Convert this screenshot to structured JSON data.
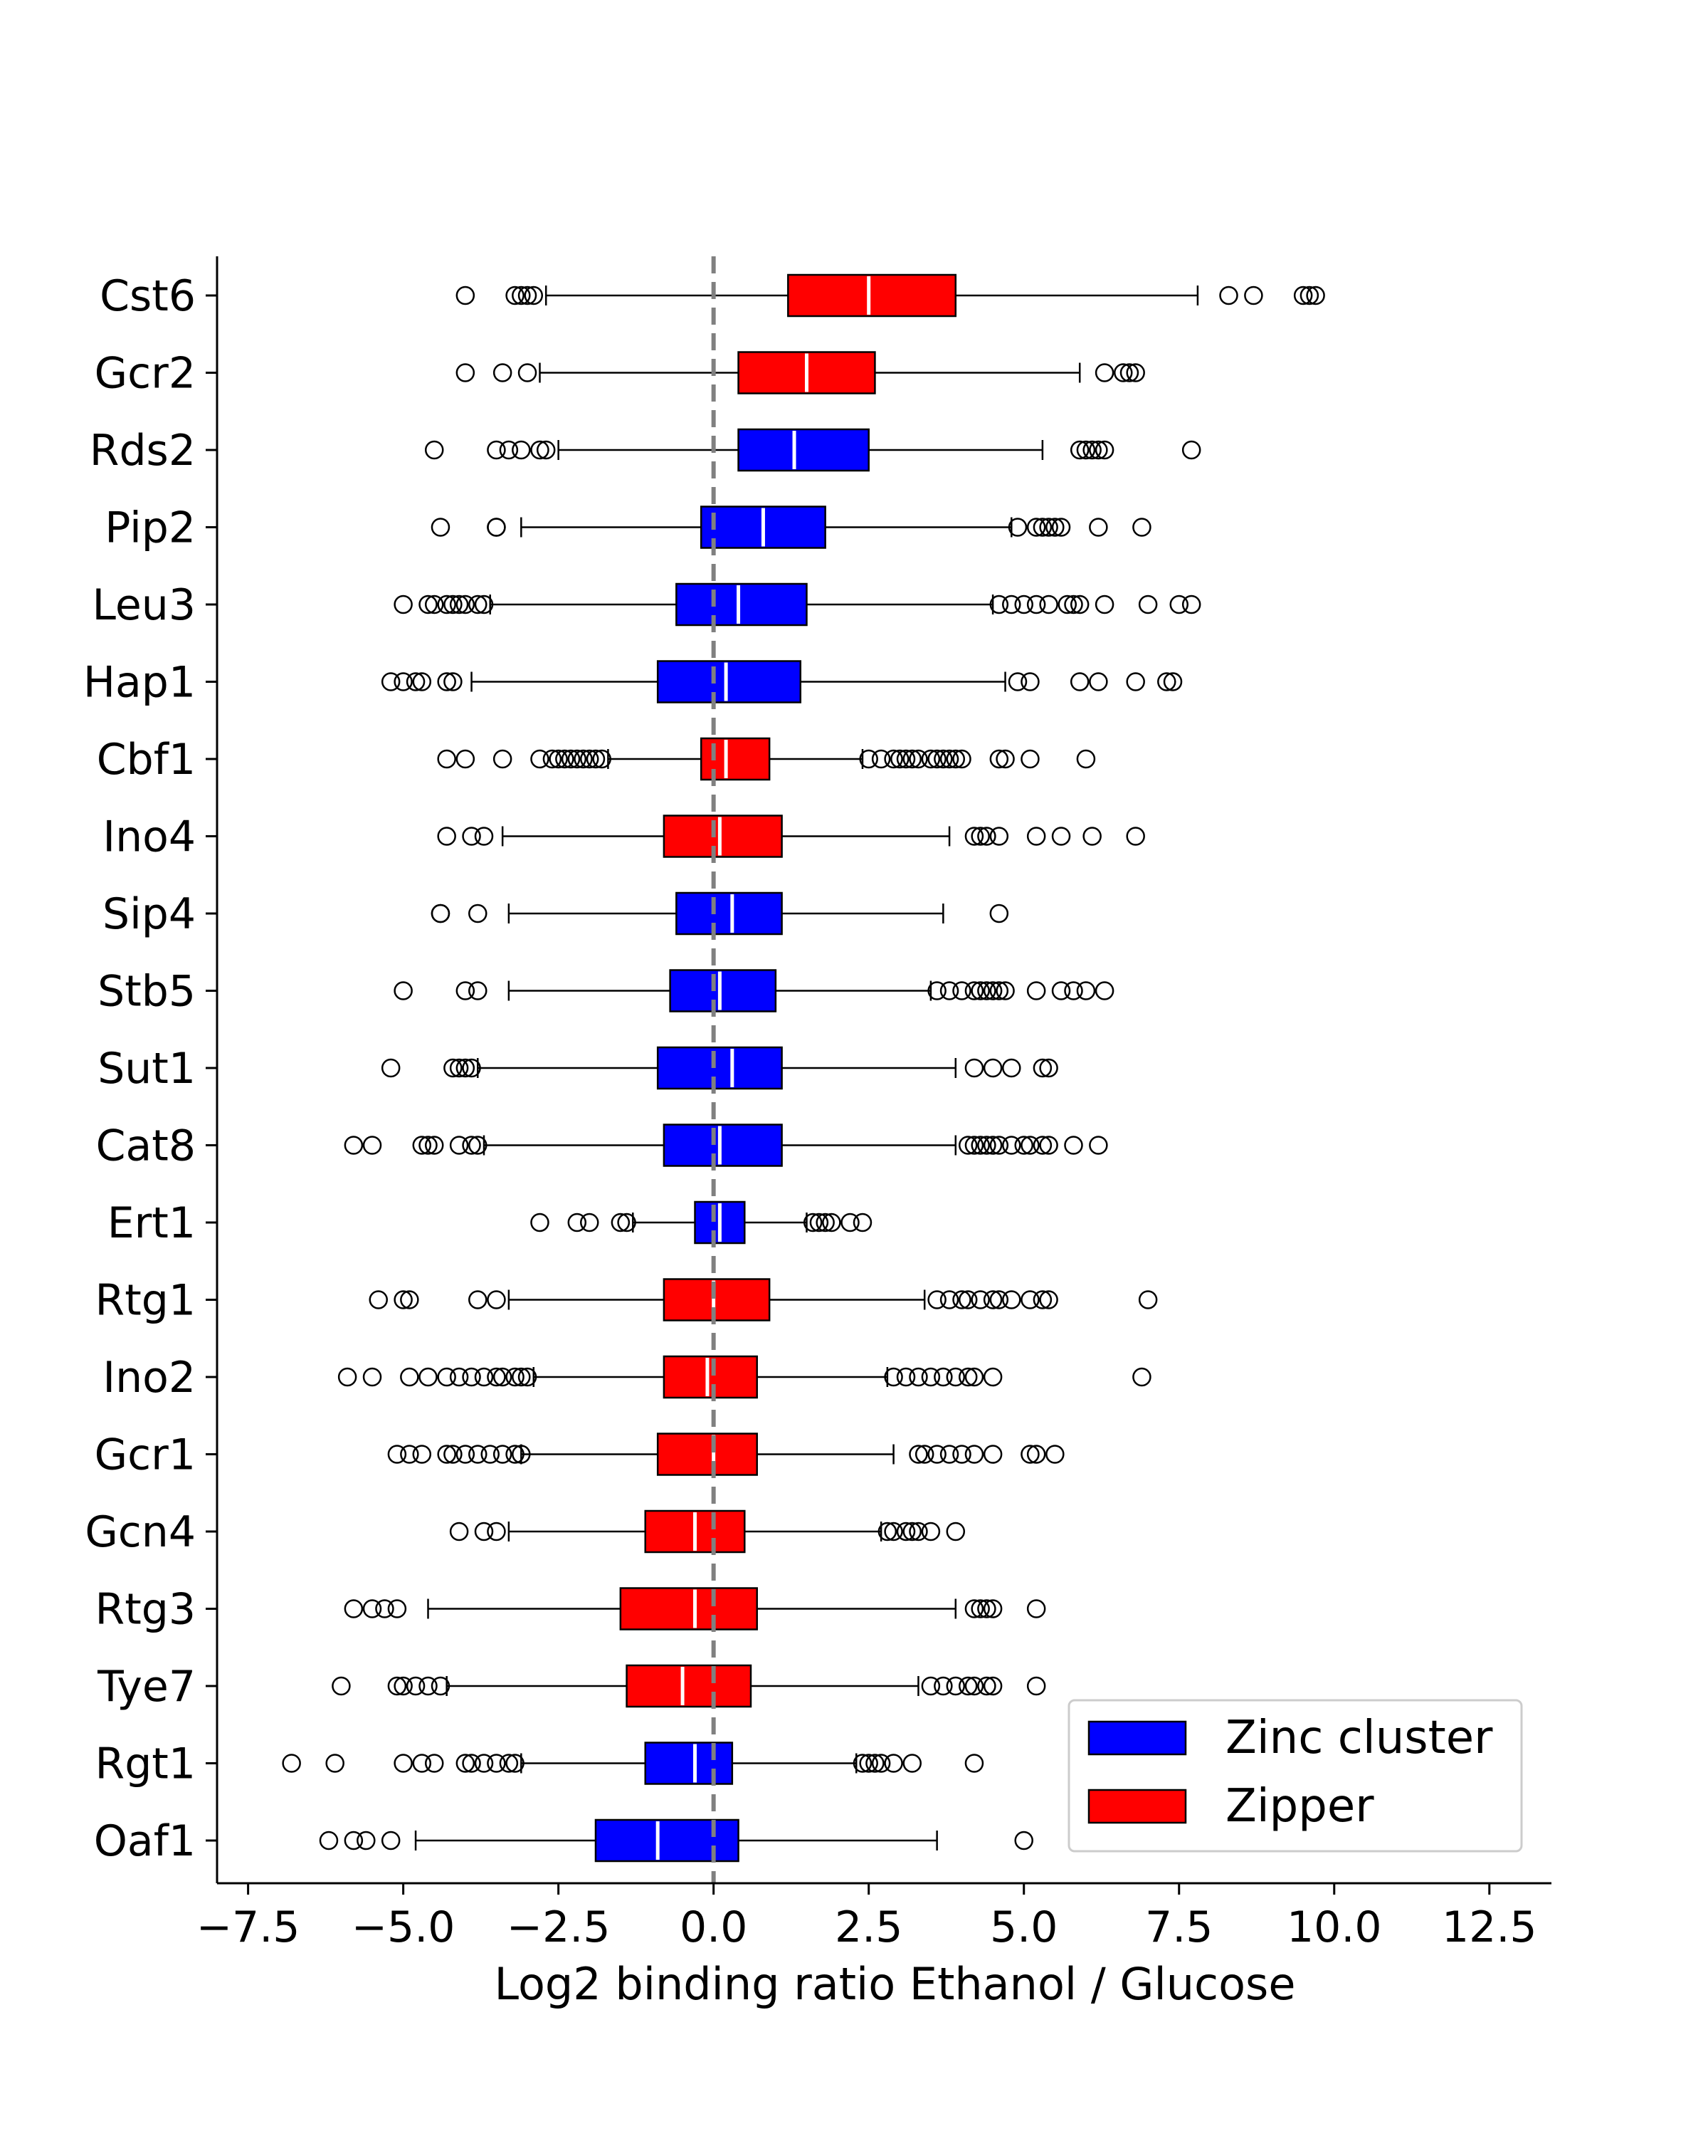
{
  "chart_data": {
    "type": "boxplot",
    "orientation": "horizontal",
    "xlabel": "Log2 binding ratio Ethanol / Glucose",
    "xlim": [
      -8.0,
      13.5
    ],
    "xticks": [
      -7.5,
      -5.0,
      -2.5,
      0.0,
      2.5,
      5.0,
      7.5,
      10.0,
      12.5
    ],
    "xtick_labels": [
      "−7.5",
      "−5.0",
      "−2.5",
      "0.0",
      "2.5",
      "5.0",
      "7.5",
      "10.0",
      "12.5"
    ],
    "reference_line": {
      "x": 0.0,
      "style": "dashed",
      "color": "#808080"
    },
    "grid": false,
    "legend": {
      "position": "bottom-right",
      "entries": [
        {
          "key": "zinc",
          "label": "Zinc cluster",
          "color": "#0000ff"
        },
        {
          "key": "zipper",
          "label": "Zipper",
          "color": "#ff0000"
        }
      ]
    },
    "boxes": [
      {
        "name": "Cst6",
        "family": "zipper",
        "whisker_low": -2.7,
        "q1": 1.2,
        "median": 2.5,
        "q3": 3.9,
        "whisker_high": 7.8,
        "outliers": [
          -4.0,
          -3.2,
          -3.1,
          -3.0,
          -2.9,
          8.3,
          8.7,
          9.5,
          9.6,
          9.7
        ]
      },
      {
        "name": "Gcr2",
        "family": "zipper",
        "whisker_low": -2.8,
        "q1": 0.4,
        "median": 1.5,
        "q3": 2.6,
        "whisker_high": 5.9,
        "outliers": [
          -4.0,
          -3.4,
          -3.0,
          6.3,
          6.6,
          6.7,
          6.8
        ]
      },
      {
        "name": "Rds2",
        "family": "zinc",
        "whisker_low": -2.5,
        "q1": 0.4,
        "median": 1.3,
        "q3": 2.5,
        "whisker_high": 5.3,
        "outliers": [
          -4.5,
          -3.5,
          -3.3,
          -3.1,
          -2.8,
          -2.7,
          5.9,
          6.0,
          6.1,
          6.2,
          6.3,
          7.7
        ]
      },
      {
        "name": "Pip2",
        "family": "zinc",
        "whisker_low": -3.1,
        "q1": -0.2,
        "median": 0.8,
        "q3": 1.8,
        "whisker_high": 4.8,
        "outliers": [
          -4.4,
          -3.5,
          -3.5,
          4.9,
          5.2,
          5.3,
          5.4,
          5.5,
          5.6,
          6.2,
          6.9
        ]
      },
      {
        "name": "Leu3",
        "family": "zinc",
        "whisker_low": -3.6,
        "q1": -0.6,
        "median": 0.4,
        "q3": 1.5,
        "whisker_high": 4.5,
        "outliers": [
          -5.0,
          -4.6,
          -4.5,
          -4.3,
          -4.2,
          -4.1,
          -4.0,
          -3.8,
          -3.7,
          4.6,
          4.8,
          5.0,
          5.2,
          5.4,
          5.7,
          5.8,
          5.9,
          6.3,
          7.0,
          7.5,
          7.7
        ]
      },
      {
        "name": "Hap1",
        "family": "zinc",
        "whisker_low": -3.9,
        "q1": -0.9,
        "median": 0.2,
        "q3": 1.4,
        "whisker_high": 4.7,
        "outliers": [
          -5.2,
          -5.0,
          -4.8,
          -4.7,
          -4.3,
          -4.2,
          4.9,
          5.1,
          5.9,
          6.2,
          6.8,
          7.3,
          7.4
        ]
      },
      {
        "name": "Cbf1",
        "family": "zipper",
        "whisker_low": -1.7,
        "q1": -0.2,
        "median": 0.2,
        "q3": 0.9,
        "whisker_high": 2.4,
        "outliers": [
          -4.3,
          -4.0,
          -3.4,
          -2.8,
          -2.6,
          -2.5,
          -2.4,
          -2.3,
          -2.2,
          -2.1,
          -2.0,
          -1.9,
          -1.8,
          2.5,
          2.7,
          2.9,
          3.0,
          3.1,
          3.2,
          3.3,
          3.5,
          3.6,
          3.7,
          3.8,
          3.9,
          4.0,
          4.6,
          4.7,
          5.1,
          6.0
        ]
      },
      {
        "name": "Ino4",
        "family": "zipper",
        "whisker_low": -3.4,
        "q1": -0.8,
        "median": 0.1,
        "q3": 1.1,
        "whisker_high": 3.8,
        "outliers": [
          -4.3,
          -3.9,
          -3.7,
          4.2,
          4.3,
          4.4,
          4.6,
          5.2,
          5.6,
          6.1,
          6.8
        ]
      },
      {
        "name": "Sip4",
        "family": "zinc",
        "whisker_low": -3.3,
        "q1": -0.6,
        "median": 0.3,
        "q3": 1.1,
        "whisker_high": 3.7,
        "outliers": [
          -4.4,
          -4.4,
          -3.8,
          4.6
        ]
      },
      {
        "name": "Stb5",
        "family": "zinc",
        "whisker_low": -3.3,
        "q1": -0.7,
        "median": 0.1,
        "q3": 1.0,
        "whisker_high": 3.5,
        "outliers": [
          -5.0,
          -4.0,
          -3.8,
          3.6,
          3.8,
          4.0,
          4.2,
          4.3,
          4.4,
          4.5,
          4.6,
          4.7,
          5.2,
          5.6,
          5.8,
          6.0,
          6.3
        ]
      },
      {
        "name": "Sut1",
        "family": "zinc",
        "whisker_low": -3.8,
        "q1": -0.9,
        "median": 0.3,
        "q3": 1.1,
        "whisker_high": 3.9,
        "outliers": [
          -5.2,
          -4.2,
          -4.1,
          -4.0,
          -3.9,
          4.2,
          4.5,
          4.8,
          5.3,
          5.4
        ]
      },
      {
        "name": "Cat8",
        "family": "zinc",
        "whisker_low": -3.7,
        "q1": -0.8,
        "median": 0.1,
        "q3": 1.1,
        "whisker_high": 3.9,
        "outliers": [
          -5.8,
          -5.5,
          -4.7,
          -4.6,
          -4.5,
          -4.1,
          -3.9,
          -3.8,
          4.1,
          4.2,
          4.3,
          4.4,
          4.5,
          4.6,
          4.8,
          5.0,
          5.1,
          5.3,
          5.4,
          5.8,
          6.2
        ]
      },
      {
        "name": "Ert1",
        "family": "zinc",
        "whisker_low": -1.3,
        "q1": -0.3,
        "median": 0.1,
        "q3": 0.5,
        "whisker_high": 1.5,
        "outliers": [
          -2.8,
          -2.2,
          -2.0,
          -1.5,
          -1.4,
          1.6,
          1.7,
          1.8,
          1.9,
          2.2,
          2.4
        ]
      },
      {
        "name": "Rtg1",
        "family": "zipper",
        "whisker_low": -3.3,
        "q1": -0.8,
        "median": 0.0,
        "q3": 0.9,
        "whisker_high": 3.4,
        "outliers": [
          -5.4,
          -5.0,
          -4.9,
          -3.8,
          -3.5,
          3.6,
          3.8,
          4.0,
          4.1,
          4.3,
          4.5,
          4.6,
          4.8,
          5.1,
          5.3,
          5.4,
          7.0
        ]
      },
      {
        "name": "Ino2",
        "family": "zipper",
        "whisker_low": -2.9,
        "q1": -0.8,
        "median": -0.1,
        "q3": 0.7,
        "whisker_high": 2.8,
        "outliers": [
          -5.9,
          -5.5,
          -4.9,
          -4.6,
          -4.3,
          -4.1,
          -3.9,
          -3.7,
          -3.5,
          -3.4,
          -3.2,
          -3.1,
          -3.0,
          2.9,
          3.1,
          3.3,
          3.5,
          3.7,
          3.9,
          4.1,
          4.2,
          4.5,
          6.9
        ]
      },
      {
        "name": "Gcr1",
        "family": "zipper",
        "whisker_low": -3.1,
        "q1": -0.9,
        "median": 0.0,
        "q3": 0.7,
        "whisker_high": 2.9,
        "outliers": [
          -5.1,
          -4.9,
          -4.7,
          -4.3,
          -4.2,
          -4.0,
          -3.8,
          -3.6,
          -3.4,
          -3.2,
          -3.1,
          3.3,
          3.4,
          3.6,
          3.8,
          4.0,
          4.2,
          4.5,
          5.1,
          5.2,
          5.5
        ]
      },
      {
        "name": "Gcn4",
        "family": "zipper",
        "whisker_low": -3.3,
        "q1": -1.1,
        "median": -0.3,
        "q3": 0.5,
        "whisker_high": 2.7,
        "outliers": [
          -4.1,
          -3.7,
          -3.5,
          2.8,
          2.9,
          3.1,
          3.2,
          3.3,
          3.5,
          3.9
        ]
      },
      {
        "name": "Rtg3",
        "family": "zipper",
        "whisker_low": -4.6,
        "q1": -1.5,
        "median": -0.3,
        "q3": 0.7,
        "whisker_high": 3.9,
        "outliers": [
          -5.8,
          -5.5,
          -5.3,
          -5.1,
          4.2,
          4.3,
          4.4,
          4.5,
          5.2
        ]
      },
      {
        "name": "Tye7",
        "family": "zipper",
        "whisker_low": -4.3,
        "q1": -1.4,
        "median": -0.5,
        "q3": 0.6,
        "whisker_high": 3.3,
        "outliers": [
          -6.0,
          -5.1,
          -5.0,
          -4.8,
          -4.6,
          -4.4,
          3.5,
          3.7,
          3.9,
          4.1,
          4.2,
          4.4,
          4.5,
          5.2
        ]
      },
      {
        "name": "Rgt1",
        "family": "zinc",
        "whisker_low": -3.1,
        "q1": -1.1,
        "median": -0.3,
        "q3": 0.3,
        "whisker_high": 2.3,
        "outliers": [
          -6.8,
          -6.1,
          -5.0,
          -4.7,
          -4.5,
          -4.0,
          -3.9,
          -3.7,
          -3.5,
          -3.3,
          -3.2,
          2.4,
          2.5,
          2.6,
          2.7,
          2.9,
          3.2,
          4.2
        ]
      },
      {
        "name": "Oaf1",
        "family": "zinc",
        "whisker_low": -4.8,
        "q1": -1.9,
        "median": -0.9,
        "q3": 0.4,
        "whisker_high": 3.6,
        "outliers": [
          -6.2,
          -5.8,
          -5.6,
          -5.2,
          5.0
        ]
      }
    ]
  }
}
